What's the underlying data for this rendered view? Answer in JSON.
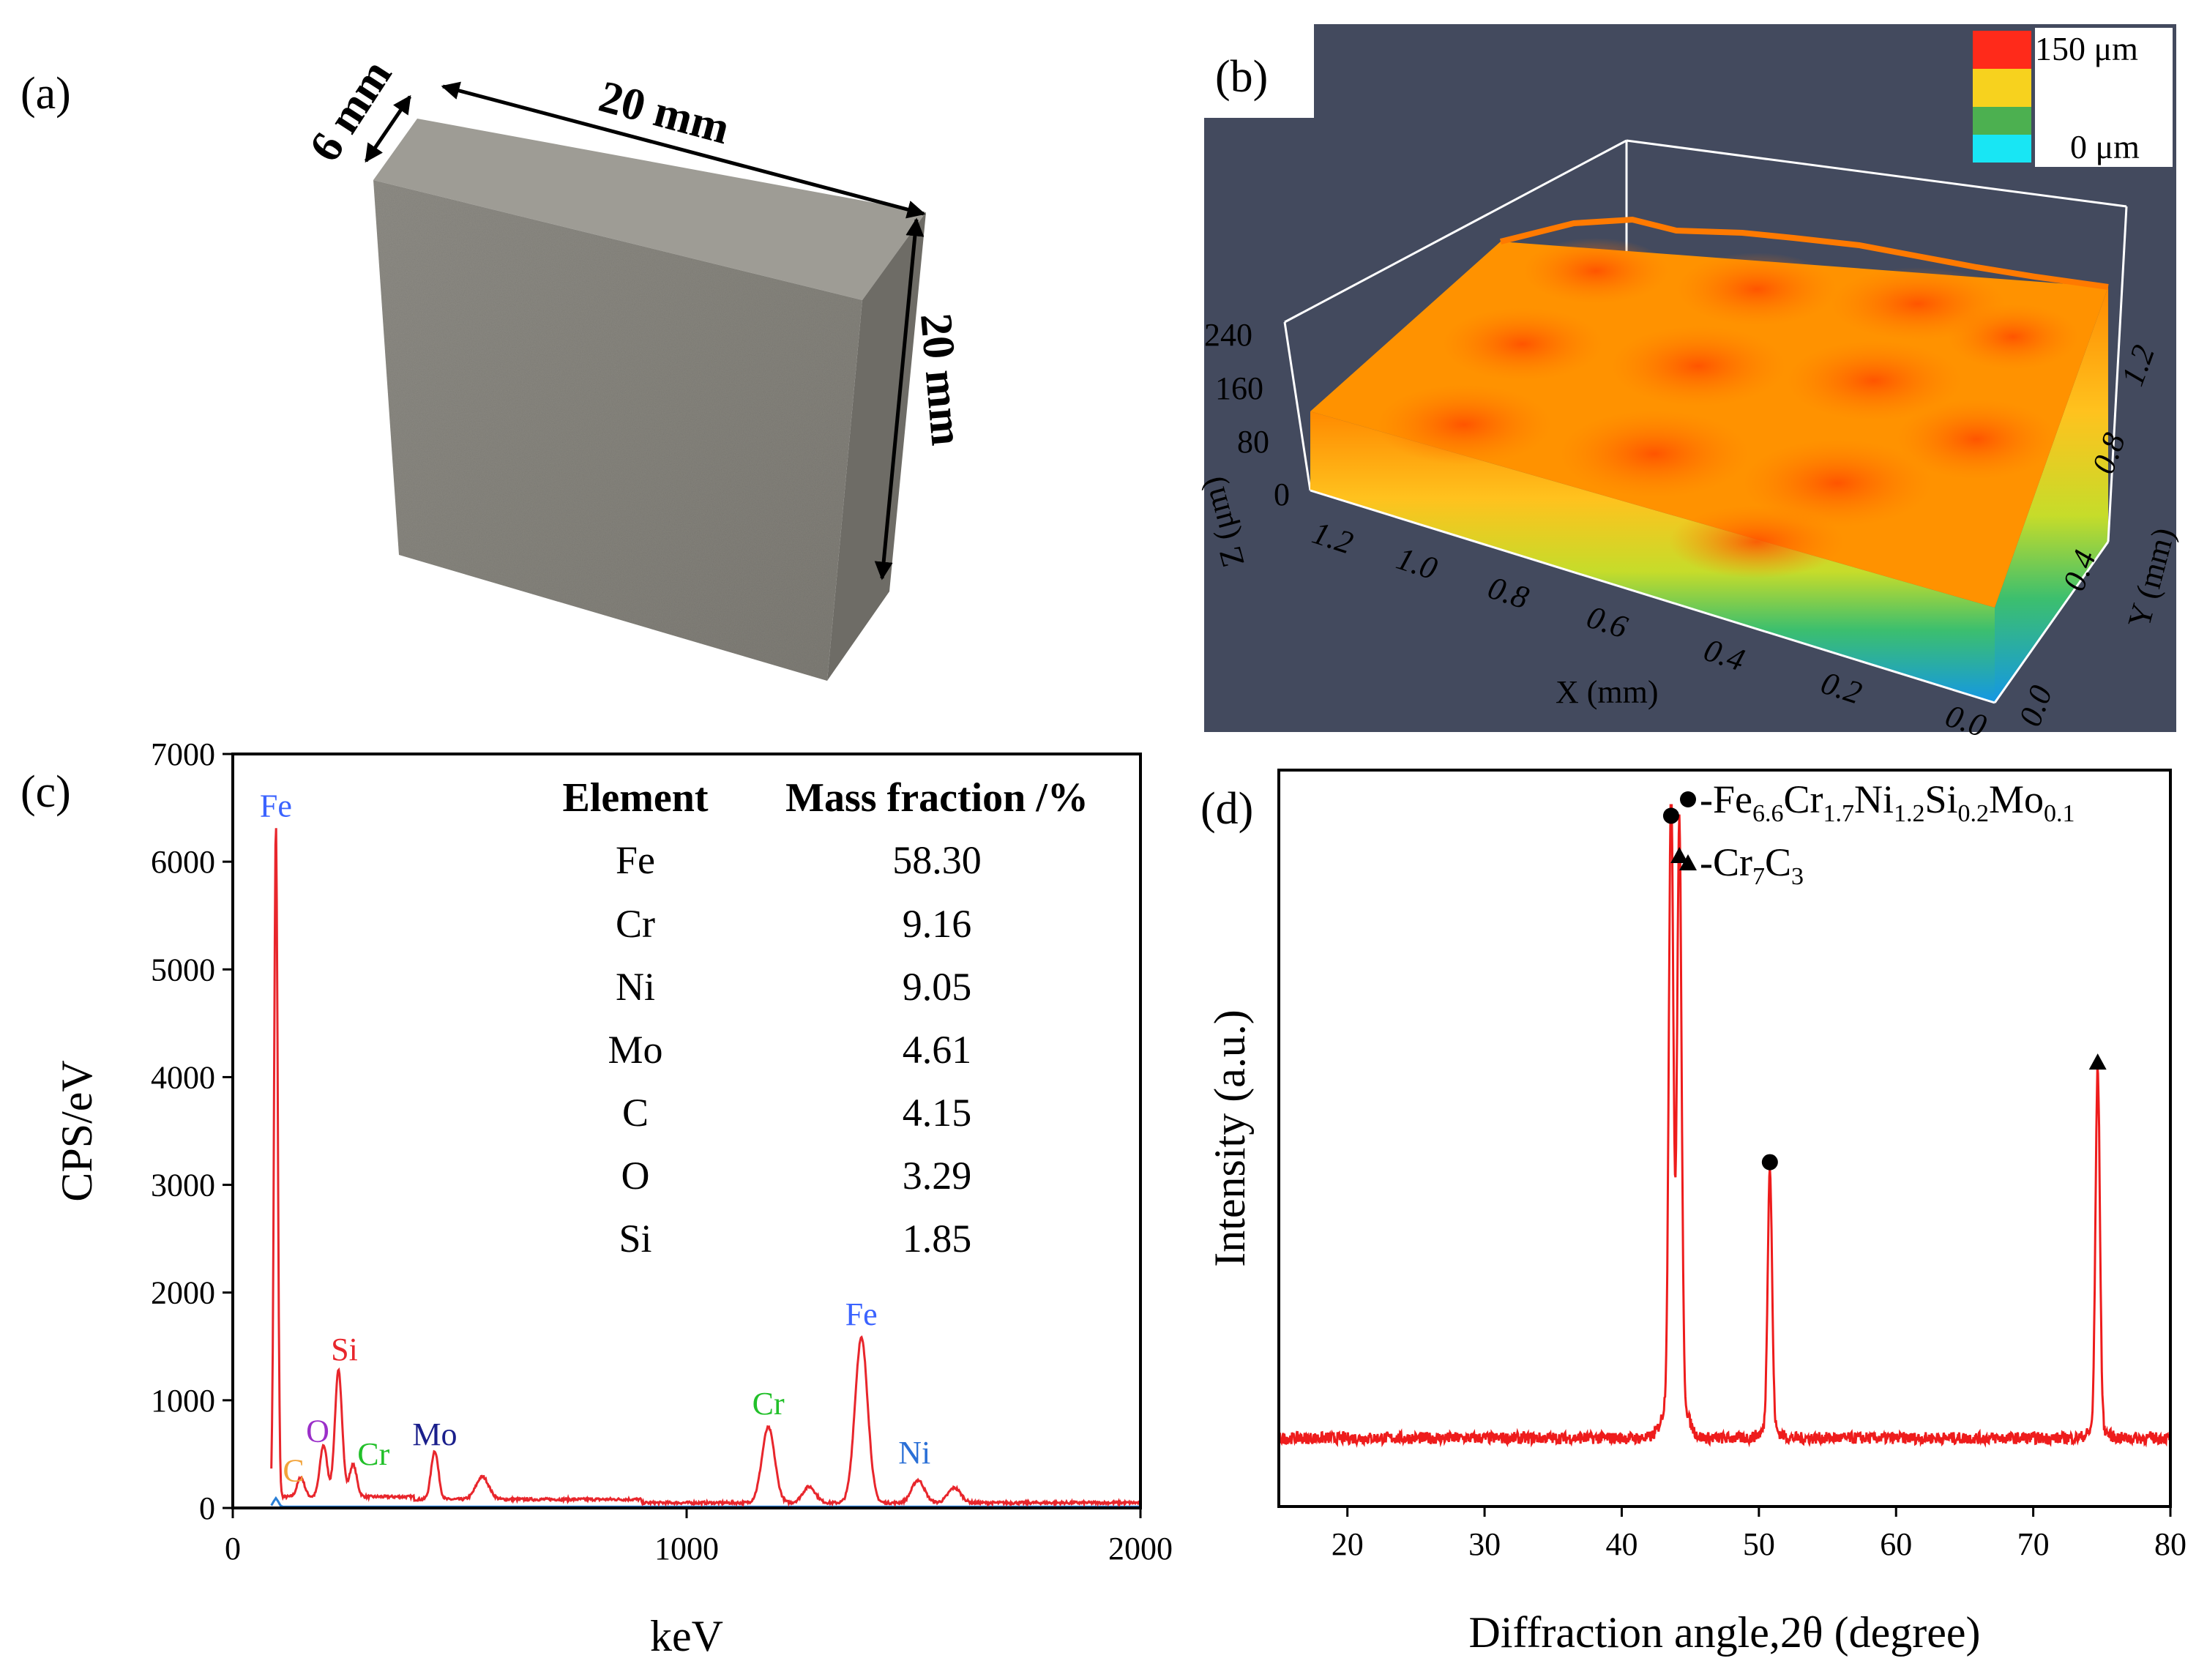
{
  "panels": {
    "a": {
      "label": "(a)",
      "dims": {
        "depth": "6 mm",
        "width": "20 mm",
        "height": "20 mm"
      }
    },
    "b": {
      "label": "(b)",
      "colorbar": {
        "max": "150 μm",
        "min": "0 μm",
        "colors": [
          "#ff2a1a",
          "#f7d21e",
          "#4cb050",
          "#18e6f4"
        ]
      },
      "z_axis": {
        "label": "Z (μm)",
        "ticks": [
          "240",
          "160",
          "80",
          "0"
        ]
      },
      "x_axis": {
        "label": "X (mm)",
        "ticks": [
          "1.2",
          "1.0",
          "0.8",
          "0.6",
          "0.4",
          "0.2",
          "0.0"
        ]
      },
      "y_axis": {
        "label": "Y (mm)",
        "ticks": [
          "0.0",
          "0.4",
          "0.8",
          "1.2"
        ]
      },
      "bg_color": "#434a5e",
      "surface_colors": [
        "#ff6a00",
        "#ffa500",
        "#f2dd28",
        "#42b86a",
        "#16a9e8"
      ]
    },
    "c": {
      "label": "(c)",
      "table": {
        "headers": [
          "Element",
          "Mass fraction /%"
        ],
        "rows": [
          [
            "Fe",
            "58.30"
          ],
          [
            "Cr",
            "9.16"
          ],
          [
            "Ni",
            "9.05"
          ],
          [
            "Mo",
            "4.61"
          ],
          [
            "C",
            "4.15"
          ],
          [
            "O",
            "3.29"
          ],
          [
            "Si",
            "1.85"
          ]
        ]
      }
    },
    "d": {
      "label": "(d)",
      "legend": {
        "phase1": {
          "prefix": "-Fe",
          "s1": "6.6",
          "e2": "Cr",
          "s2": "1.7",
          "e3": "Ni",
          "s3": "1.2",
          "e4": "Si",
          "s4": "0.2",
          "e5": "Mo",
          "s5": "0.1"
        },
        "phase2": {
          "prefix": "-Cr",
          "s1": "7",
          "e2": "C",
          "s2": "3"
        }
      }
    }
  },
  "chart_data": [
    {
      "id": "eds",
      "type": "line",
      "xlabel": "keV",
      "ylabel": "CPS/eV",
      "xlim": [
        0,
        2000
      ],
      "ylim": [
        0,
        7000
      ],
      "xticks": [
        0,
        1000,
        2000
      ],
      "yticks": [
        0,
        1000,
        2000,
        3000,
        4000,
        5000,
        6000,
        7000
      ],
      "baseline_cps": 80,
      "line_color": "#e8262c",
      "peaks": [
        {
          "x": 95,
          "y": 6250,
          "label": "Fe",
          "color": "#3b63ff"
        },
        {
          "x": 150,
          "y": 180,
          "label": "C",
          "color": "#f2a33a"
        },
        {
          "x": 200,
          "y": 480,
          "label": "O",
          "color": "#9b2fc9"
        },
        {
          "x": 233,
          "y": 1170,
          "label": "Si",
          "color": "#e8262c"
        },
        {
          "x": 265,
          "y": 300,
          "label": "Cr",
          "color": "#22c02a"
        },
        {
          "x": 445,
          "y": 450,
          "label": "Mo",
          "color": "#1a1f8c"
        },
        {
          "x": 1180,
          "y": 700,
          "label": "Cr",
          "color": "#22c02a"
        },
        {
          "x": 1385,
          "y": 1530,
          "label": "Fe",
          "color": "#3b63ff"
        },
        {
          "x": 1510,
          "y": 210,
          "label": "Ni",
          "color": "#2a6fd6"
        },
        {
          "x": 550,
          "y": 210,
          "label": "",
          "color": ""
        },
        {
          "x": 1270,
          "y": 150,
          "label": "",
          "color": ""
        },
        {
          "x": 1590,
          "y": 140,
          "label": "",
          "color": ""
        }
      ]
    },
    {
      "id": "xrd",
      "type": "line",
      "xlabel": "Diffraction angle,2θ (degree)",
      "ylabel": "Intensity (a.u.)",
      "xlim": [
        15,
        80
      ],
      "xticks": [
        20,
        30,
        40,
        50,
        60,
        70,
        80
      ],
      "ylim": [
        0,
        1
      ],
      "baseline": 0.05,
      "line_color": "#ee1c1c",
      "peaks": [
        {
          "x": 43.6,
          "y": 0.96,
          "marker": "circle"
        },
        {
          "x": 44.2,
          "y": 0.9,
          "marker": "triangle"
        },
        {
          "x": 50.8,
          "y": 0.44,
          "marker": "circle"
        },
        {
          "x": 74.7,
          "y": 0.59,
          "marker": "triangle"
        }
      ]
    }
  ]
}
